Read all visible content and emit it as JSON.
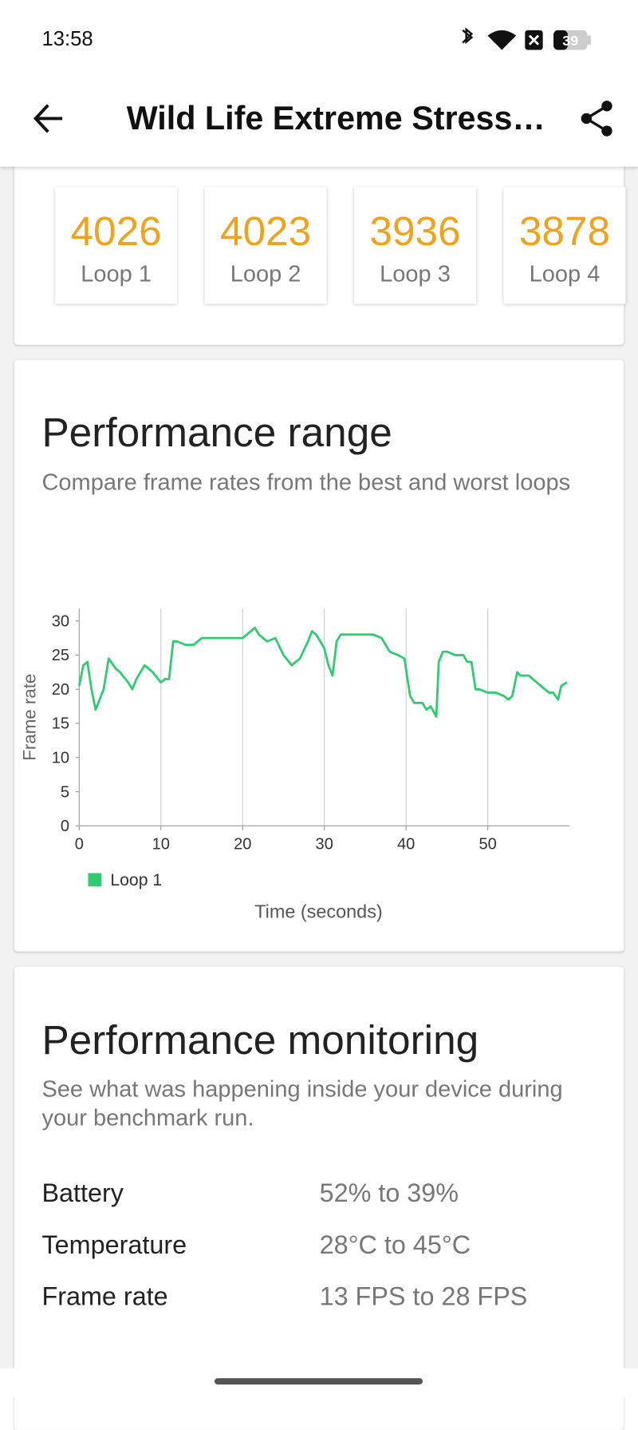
{
  "status_bar": {
    "time": "13:58",
    "battery": "39"
  },
  "app_bar": {
    "title": "Wild Life Extreme Stress…"
  },
  "loops": [
    {
      "score": "4026",
      "name": "Loop 1"
    },
    {
      "score": "4023",
      "name": "Loop 2"
    },
    {
      "score": "3936",
      "name": "Loop 3"
    },
    {
      "score": "3878",
      "name": "Loop 4"
    }
  ],
  "performance_range": {
    "title": "Performance range",
    "subtitle": "Compare frame rates from the best and worst loops"
  },
  "chart_data": {
    "type": "line",
    "x_label": "Time (seconds)",
    "y_label": "Frame rate",
    "x": [
      0,
      0.5,
      1,
      1.5,
      2,
      3,
      3.6,
      4.5,
      5,
      6,
      6.5,
      7,
      8,
      9,
      10,
      10.5,
      11,
      11.5,
      12,
      13,
      14,
      15,
      16,
      17,
      18,
      19,
      20,
      21,
      21.5,
      22,
      23,
      24,
      25,
      26,
      26.5,
      27,
      28,
      28.5,
      29,
      30,
      30.5,
      31,
      31.5,
      32,
      33,
      34,
      35,
      36,
      37,
      38,
      39,
      39.8,
      40.5,
      41,
      42,
      42.5,
      43,
      43.7,
      44,
      44.5,
      45,
      46,
      47,
      47.5,
      48,
      48.5,
      49,
      50,
      51,
      52,
      52.5,
      53,
      53.6,
      54,
      55,
      55.5,
      56,
      57,
      57.5,
      58,
      58.6,
      59,
      59.7
    ],
    "series": [
      {
        "name": "Loop 1",
        "color": "#2ecc71",
        "values": [
          20.5,
          23.5,
          24,
          20,
          17,
          20,
          24.5,
          23,
          22.5,
          21,
          20,
          21.5,
          23.5,
          22.5,
          21,
          21.5,
          21.5,
          27,
          27,
          26.5,
          26.5,
          27.5,
          27.5,
          27.5,
          27.5,
          27.5,
          27.5,
          28.5,
          29,
          28,
          27,
          27.5,
          25,
          23.5,
          24,
          24.5,
          27,
          28.5,
          28,
          26,
          23.5,
          22,
          27,
          28,
          28,
          28,
          28,
          28,
          27.5,
          25.5,
          25,
          24.5,
          19,
          18,
          18,
          17,
          17.5,
          16,
          24,
          25.5,
          25.5,
          25,
          25,
          24,
          24,
          20,
          20,
          19.5,
          19.5,
          19,
          18.5,
          19,
          22.5,
          22,
          22,
          21.5,
          21,
          20,
          19.5,
          19.5,
          18.5,
          20.5,
          21
        ]
      }
    ],
    "xlim": [
      0,
      60
    ],
    "ylim": [
      0,
      30
    ],
    "xticks": [
      0,
      10,
      20,
      30,
      40,
      50
    ],
    "yticks": [
      0,
      5,
      10,
      15,
      20,
      25,
      30
    ],
    "grid": "x",
    "legend": "bottom-left"
  },
  "performance_monitoring": {
    "title": "Performance monitoring",
    "subtitle": "See what was happening inside your device during your benchmark run.",
    "rows": [
      {
        "label": "Battery",
        "value": "52% to 39%"
      },
      {
        "label": "Temperature",
        "value": "28°C to 45°C"
      },
      {
        "label": "Frame rate",
        "value": "13 FPS to 28 FPS"
      }
    ]
  }
}
